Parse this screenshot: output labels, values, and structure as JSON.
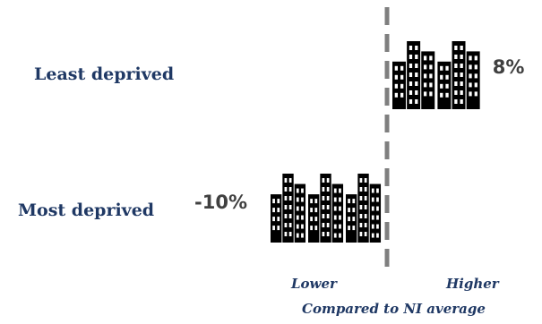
{
  "chart_data": {
    "type": "bar",
    "categories": [
      "Least deprived",
      "Most deprived"
    ],
    "values": [
      8,
      -10
    ],
    "value_labels": [
      "8%",
      "-10%"
    ],
    "unit": "%",
    "xlim": [
      -10,
      10
    ],
    "baseline": 0,
    "axis_left_label": "Lower",
    "axis_right_label": "Higher",
    "axis_title": "Compared to NI average",
    "bar_style": "building-pictograph",
    "grid": false,
    "legend": "none",
    "colors": {
      "category_text": "#1f3864",
      "value_text": "#404040",
      "baseline": "#7f7f7f",
      "buildings": "#000000"
    }
  }
}
